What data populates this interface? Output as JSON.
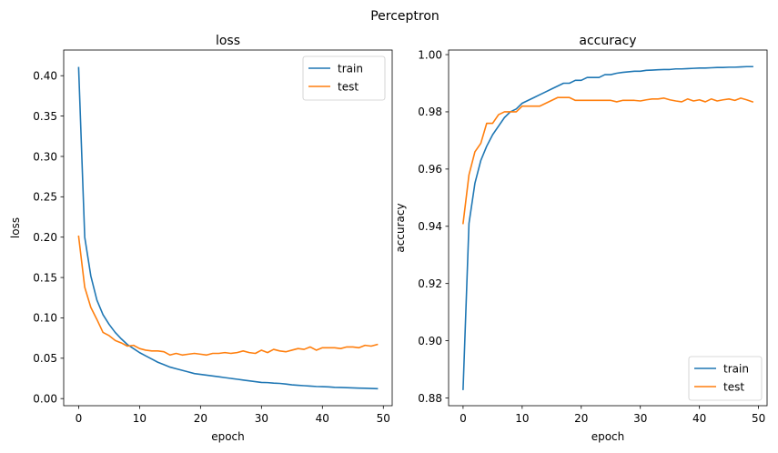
{
  "figure": {
    "suptitle": "Perceptron"
  },
  "chart_data": [
    {
      "type": "line",
      "title": "loss",
      "xlabel": "epoch",
      "ylabel": "loss",
      "xlim": [
        -2.45,
        51.45
      ],
      "ylim": [
        -0.0088,
        0.4318
      ],
      "xticks": [
        0,
        10,
        20,
        30,
        40,
        50
      ],
      "xtick_labels": [
        "0",
        "10",
        "20",
        "30",
        "40",
        "50"
      ],
      "yticks": [
        0.0,
        0.05,
        0.1,
        0.15,
        0.2,
        0.25,
        0.3,
        0.35,
        0.4
      ],
      "ytick_labels": [
        "0.00",
        "0.05",
        "0.10",
        "0.15",
        "0.20",
        "0.25",
        "0.30",
        "0.35",
        "0.40"
      ],
      "grid": false,
      "legend": "upper right",
      "x": [
        0,
        1,
        2,
        3,
        4,
        5,
        6,
        7,
        8,
        9,
        10,
        11,
        12,
        13,
        14,
        15,
        16,
        17,
        18,
        19,
        20,
        21,
        22,
        23,
        24,
        25,
        26,
        27,
        28,
        29,
        30,
        31,
        32,
        33,
        34,
        35,
        36,
        37,
        38,
        39,
        40,
        41,
        42,
        43,
        44,
        45,
        46,
        47,
        48,
        49
      ],
      "series": [
        {
          "name": "train",
          "color": "#1f77b4",
          "values": [
            0.41,
            0.2,
            0.152,
            0.122,
            0.104,
            0.092,
            0.082,
            0.074,
            0.067,
            0.062,
            0.057,
            0.053,
            0.049,
            0.045,
            0.042,
            0.039,
            0.037,
            0.035,
            0.033,
            0.031,
            0.03,
            0.029,
            0.028,
            0.027,
            0.026,
            0.025,
            0.024,
            0.023,
            0.022,
            0.021,
            0.02,
            0.0198,
            0.0192,
            0.0188,
            0.018,
            0.017,
            0.0165,
            0.016,
            0.0155,
            0.015,
            0.0148,
            0.0145,
            0.014,
            0.0138,
            0.0135,
            0.0133,
            0.013,
            0.0128,
            0.0125,
            0.0123
          ]
        },
        {
          "name": "test",
          "color": "#ff7f0e",
          "values": [
            0.201,
            0.138,
            0.113,
            0.098,
            0.082,
            0.078,
            0.072,
            0.069,
            0.065,
            0.066,
            0.062,
            0.06,
            0.059,
            0.059,
            0.058,
            0.054,
            0.056,
            0.054,
            0.055,
            0.056,
            0.055,
            0.054,
            0.056,
            0.056,
            0.057,
            0.056,
            0.057,
            0.059,
            0.057,
            0.056,
            0.06,
            0.057,
            0.061,
            0.059,
            0.058,
            0.06,
            0.062,
            0.061,
            0.064,
            0.06,
            0.063,
            0.063,
            0.063,
            0.062,
            0.064,
            0.064,
            0.063,
            0.066,
            0.065,
            0.067
          ]
        }
      ]
    },
    {
      "type": "line",
      "title": "accuracy",
      "xlabel": "epoch",
      "ylabel": "accuracy",
      "xlim": [
        -2.45,
        51.45
      ],
      "ylim": [
        0.8773,
        1.0016
      ],
      "xticks": [
        0,
        10,
        20,
        30,
        40,
        50
      ],
      "xtick_labels": [
        "0",
        "10",
        "20",
        "30",
        "40",
        "50"
      ],
      "yticks": [
        0.88,
        0.9,
        0.92,
        0.94,
        0.96,
        0.98,
        1.0
      ],
      "ytick_labels": [
        "0.88",
        "0.90",
        "0.92",
        "0.94",
        "0.96",
        "0.98",
        "1.00"
      ],
      "grid": false,
      "legend": "lower right",
      "x": [
        0,
        1,
        2,
        3,
        4,
        5,
        6,
        7,
        8,
        9,
        10,
        11,
        12,
        13,
        14,
        15,
        16,
        17,
        18,
        19,
        20,
        21,
        22,
        23,
        24,
        25,
        26,
        27,
        28,
        29,
        30,
        31,
        32,
        33,
        34,
        35,
        36,
        37,
        38,
        39,
        40,
        41,
        42,
        43,
        44,
        45,
        46,
        47,
        48,
        49
      ],
      "series": [
        {
          "name": "train",
          "color": "#1f77b4",
          "values": [
            0.883,
            0.941,
            0.955,
            0.963,
            0.968,
            0.972,
            0.975,
            0.978,
            0.98,
            0.981,
            0.983,
            0.984,
            0.985,
            0.986,
            0.987,
            0.988,
            0.989,
            0.99,
            0.99,
            0.991,
            0.991,
            0.992,
            0.992,
            0.992,
            0.993,
            0.993,
            0.9935,
            0.9938,
            0.994,
            0.9942,
            0.9942,
            0.9945,
            0.9946,
            0.9947,
            0.9948,
            0.9948,
            0.995,
            0.995,
            0.9951,
            0.9952,
            0.9953,
            0.9953,
            0.9954,
            0.9955,
            0.9955,
            0.9956,
            0.9956,
            0.9957,
            0.9958,
            0.9958
          ]
        },
        {
          "name": "test",
          "color": "#ff7f0e",
          "values": [
            0.941,
            0.958,
            0.966,
            0.969,
            0.976,
            0.976,
            0.979,
            0.98,
            0.98,
            0.98,
            0.982,
            0.982,
            0.982,
            0.982,
            0.983,
            0.984,
            0.985,
            0.985,
            0.985,
            0.984,
            0.984,
            0.984,
            0.984,
            0.984,
            0.984,
            0.984,
            0.9835,
            0.984,
            0.984,
            0.984,
            0.9838,
            0.9842,
            0.9845,
            0.9845,
            0.9848,
            0.9842,
            0.9838,
            0.9835,
            0.9845,
            0.9838,
            0.9842,
            0.9835,
            0.9845,
            0.9838,
            0.9842,
            0.9845,
            0.984,
            0.9848,
            0.9842,
            0.9835
          ]
        }
      ]
    }
  ]
}
